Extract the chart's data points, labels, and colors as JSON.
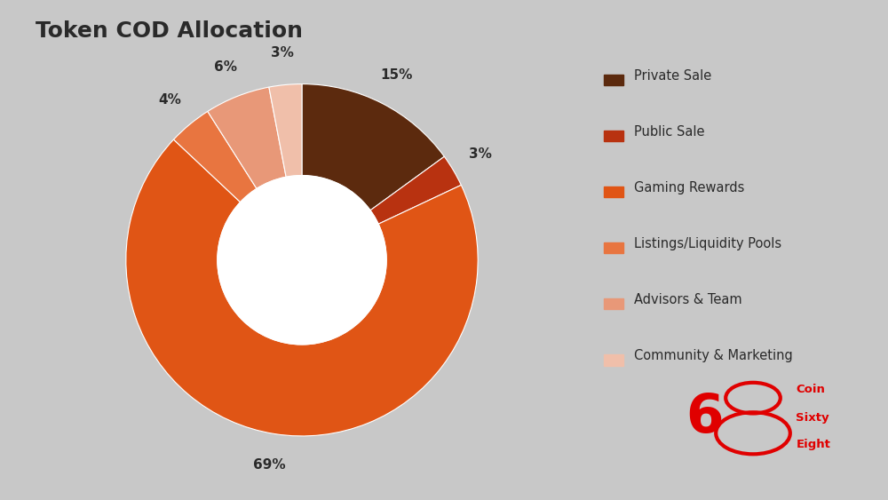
{
  "title": "Token COD Allocation",
  "background_color": "#c8c8c8",
  "slices": [
    {
      "label": "Private Sale",
      "value": 15,
      "color": "#5c2a0e",
      "pct": "15%"
    },
    {
      "label": "Public Sale",
      "value": 3,
      "color": "#b83210",
      "pct": "3%"
    },
    {
      "label": "Gaming Rewards",
      "value": 69,
      "color": "#e05515",
      "pct": "69%"
    },
    {
      "label": "Listings/Liquidity Pools",
      "value": 4,
      "color": "#e87540",
      "pct": "4%"
    },
    {
      "label": "Advisors & Team",
      "value": 6,
      "color": "#e89878",
      "pct": "6%"
    },
    {
      "label": "Community & Marketing",
      "value": 3,
      "color": "#f0bfaa",
      "pct": "3%"
    }
  ],
  "legend_colors": [
    "#5c2a0e",
    "#b83210",
    "#e05515",
    "#e87540",
    "#e89878",
    "#f0bfaa"
  ],
  "legend_labels": [
    "Private Sale",
    "Public Sale",
    "Gaming Rewards",
    "Listings/Liquidity Pools",
    "Advisors & Team",
    "Community & Marketing"
  ],
  "title_color": "#2a2a2a",
  "title_fontsize": 18,
  "pct_fontsize": 11,
  "logo_color": "#e00000",
  "logo_text1": "Coin",
  "logo_text2": "Sixty",
  "logo_text3": "Eight"
}
